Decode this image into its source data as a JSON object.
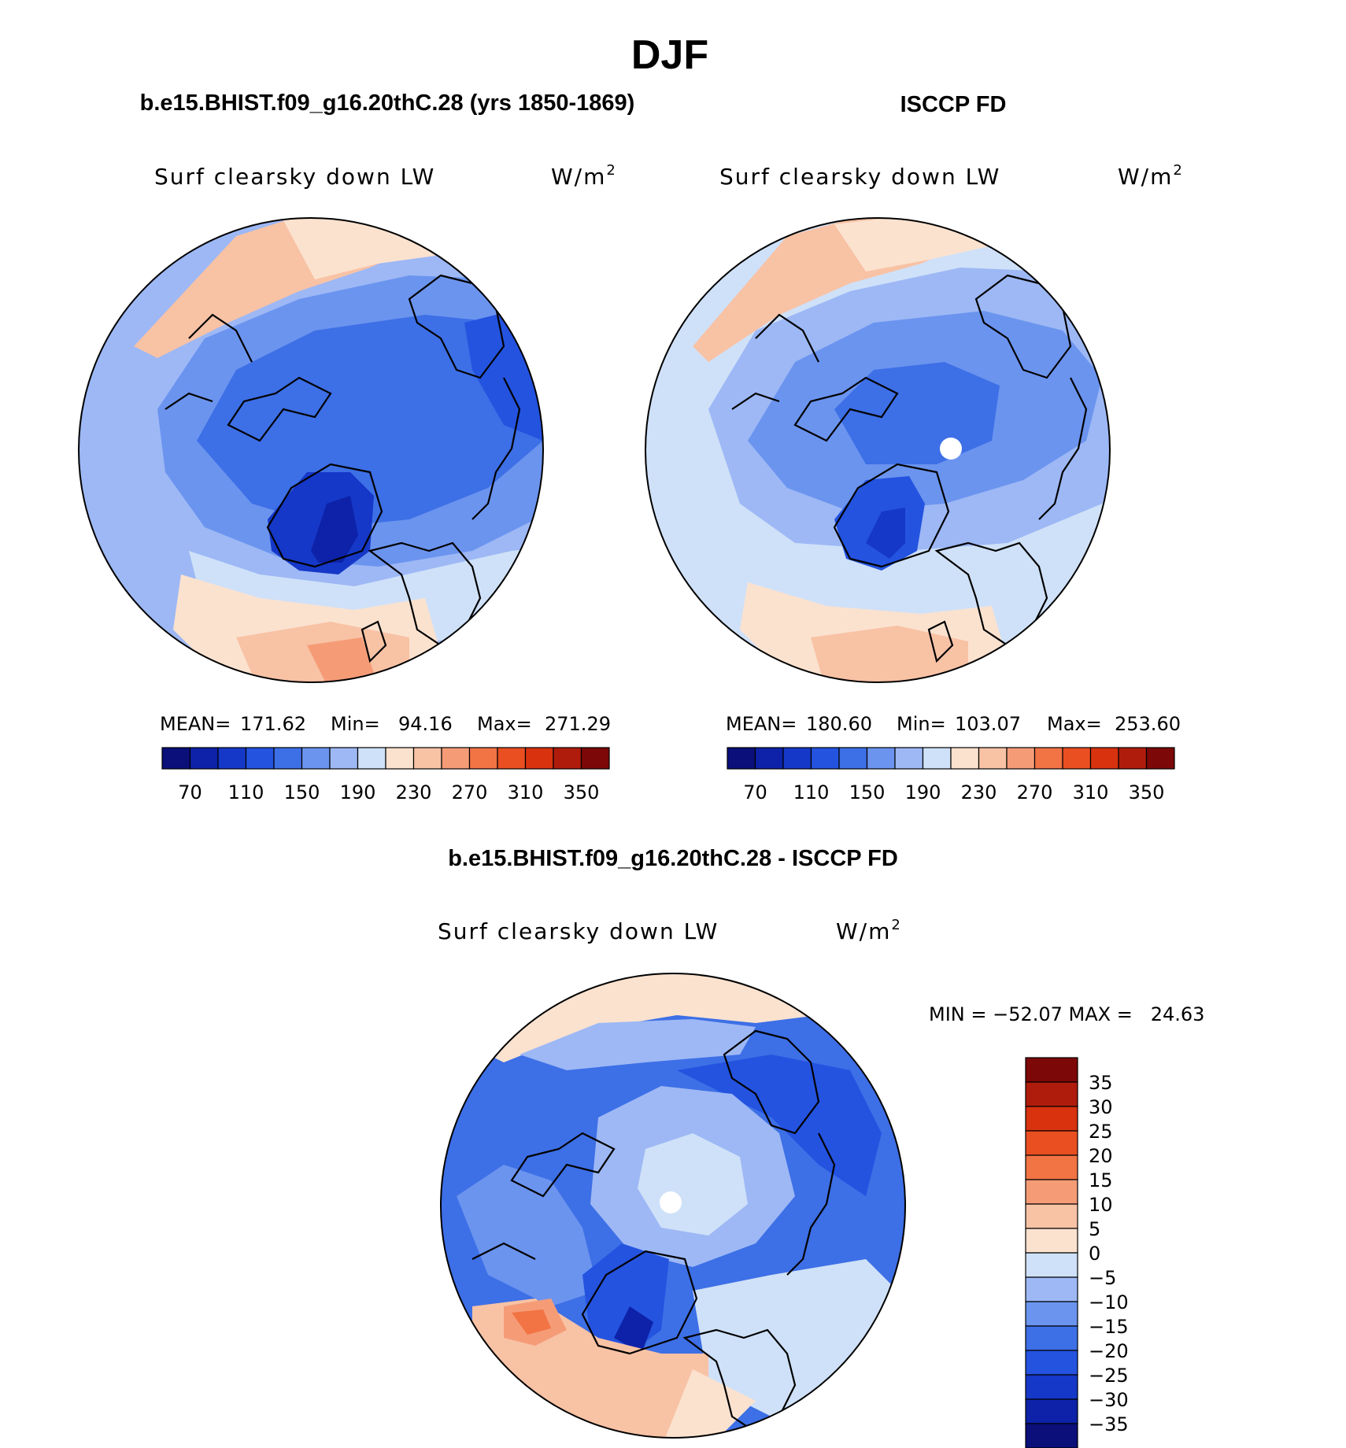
{
  "title": "DJF",
  "panels": [
    {
      "header": "b.e15.BHIST.f09_g16.20thC.28 (yrs 1850-1869)",
      "variable": "Surf clearsky down LW",
      "units": "W/m",
      "units_exp": "2",
      "stats": {
        "mean_label": "MEAN=",
        "mean": "171.62",
        "min_label": "Min=",
        "min": "94.16",
        "max_label": "Max=",
        "max": "271.29"
      }
    },
    {
      "header": "ISCCP FD",
      "variable": "Surf clearsky down LW",
      "units": "W/m",
      "units_exp": "2",
      "stats": {
        "mean_label": "MEAN=",
        "mean": "180.60",
        "min_label": "Min=",
        "min": "103.07",
        "max_label": "Max=",
        "max": "253.60"
      }
    }
  ],
  "abs_colorbar": {
    "colors": [
      "#0a0f7a",
      "#0d22a8",
      "#1538c8",
      "#2453e0",
      "#3d6fe6",
      "#6b94ef",
      "#9db8f5",
      "#cfe1f8",
      "#fbe2cf",
      "#f8c2a5",
      "#f59c77",
      "#f27344",
      "#ea4f21",
      "#d8320f",
      "#b01c0c",
      "#7d0808"
    ],
    "tick_labels": [
      "70",
      "110",
      "150",
      "190",
      "230",
      "270",
      "310",
      "350"
    ]
  },
  "diff_panel": {
    "header": "b.e15.BHIST.f09_g16.20thC.28 - ISCCP FD",
    "variable": "Surf clearsky down LW",
    "units": "W/m",
    "units_exp": "2",
    "minmax_text": "MIN = −52.07 MAX =   24.63"
  },
  "diff_colorbar": {
    "colors_top_to_bottom": [
      "#7d0808",
      "#b01c0c",
      "#d8320f",
      "#ea4f21",
      "#f27344",
      "#f59c77",
      "#f8c2a5",
      "#fbe2cf",
      "#cfe1f8",
      "#9db8f5",
      "#6b94ef",
      "#3d6fe6",
      "#2453e0",
      "#1538c8",
      "#0d22a8",
      "#0a0f7a"
    ],
    "tick_labels": [
      "35",
      "30",
      "25",
      "20",
      "15",
      "10",
      "5",
      "0",
      "−5",
      "−10",
      "−15",
      "−20",
      "−25",
      "−30",
      "−35"
    ]
  }
}
